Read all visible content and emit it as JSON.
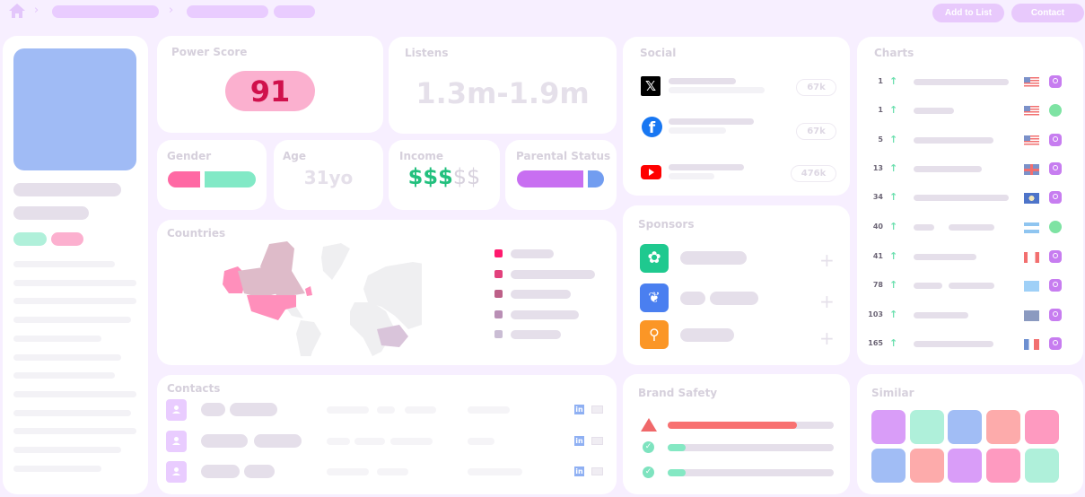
{
  "topbar": {
    "add_to_list": "Add to List",
    "contact": "Contact",
    "home_icon": "home-icon"
  },
  "power_score": {
    "title": "Power Score",
    "value": "91"
  },
  "listens": {
    "title": "Listens",
    "value": "1.3m-1.9m"
  },
  "gender": {
    "title": "Gender"
  },
  "age": {
    "title": "Age",
    "value": "31yo"
  },
  "income": {
    "title": "Income",
    "filled": "$$$",
    "empty": "$$",
    "level": 3,
    "max": 5
  },
  "parental": {
    "title": "Parental Status"
  },
  "countries": {
    "title": "Countries",
    "legend_colors": [
      "#ff1a6e",
      "#e2417c",
      "#bd6088",
      "#b98fb5",
      "#cabdd4"
    ]
  },
  "contacts": {
    "title": "Contacts"
  },
  "social": {
    "title": "Social",
    "items": [
      {
        "icon": "x-icon",
        "count": "67k"
      },
      {
        "icon": "facebook-icon",
        "count": "67k"
      },
      {
        "icon": "youtube-icon",
        "count": "476k"
      }
    ]
  },
  "sponsors": {
    "title": "Sponsors"
  },
  "brand_safety": {
    "title": "Brand Safety",
    "bars": [
      {
        "status": "warning",
        "fill": 0.78,
        "color": "#f87171"
      },
      {
        "status": "ok",
        "fill": 0.11,
        "color": "#84e8c3"
      },
      {
        "status": "ok",
        "fill": 0.11,
        "color": "#84e8c3"
      }
    ]
  },
  "similar": {
    "title": "Similar",
    "colors": [
      "#d99df8",
      "#aff0da",
      "#a1bdf5",
      "#fdabab",
      "#fe9ac0",
      "#a1bdf5",
      "#fdabab",
      "#d99df8",
      "#fe9ac0",
      "#aff0da"
    ]
  },
  "charts": {
    "title": "Charts",
    "rows": [
      {
        "rank": "1",
        "flag": "us",
        "platform": "podcasts"
      },
      {
        "rank": "1",
        "flag": "us",
        "platform": "spotify"
      },
      {
        "rank": "5",
        "flag": "us",
        "platform": "podcasts"
      },
      {
        "rank": "13",
        "flag": "gb",
        "platform": "podcasts"
      },
      {
        "rank": "34",
        "flag": "bz",
        "platform": "podcasts"
      },
      {
        "rank": "40",
        "flag": "ar",
        "platform": "spotify"
      },
      {
        "rank": "41",
        "flag": "ca",
        "platform": "podcasts"
      },
      {
        "rank": "78",
        "flag": "lc",
        "platform": "podcasts"
      },
      {
        "rank": "103",
        "flag": "other",
        "platform": "podcasts"
      },
      {
        "rank": "165",
        "flag": "fr",
        "platform": "podcasts"
      }
    ]
  }
}
